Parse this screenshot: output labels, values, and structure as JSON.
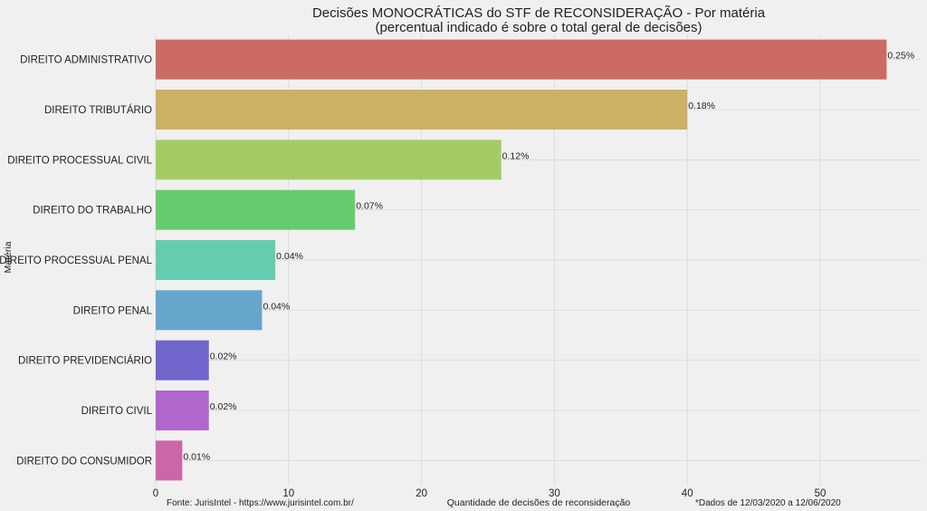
{
  "chart_data": {
    "type": "bar",
    "orientation": "horizontal",
    "title": "Decisões MONOCRÁTICAS do STF de RECONSIDERAÇÃO - Por matéria",
    "subtitle": "(percentual indicado é sobre o total geral de decisões)",
    "xlabel": "Quantidade de decisões de reconsideração",
    "ylabel": "Matéria",
    "xlim": [
      0,
      56
    ],
    "xticks": [
      0,
      10,
      20,
      30,
      40,
      50
    ],
    "grid": true,
    "categories": [
      "DIREITO ADMINISTRATIVO",
      "DIREITO TRIBUTÁRIO",
      "DIREITO PROCESSUAL CIVIL",
      "DIREITO DO TRABALHO",
      "DIREITO PROCESSUAL PENAL",
      "DIREITO PENAL",
      "DIREITO PREVIDENCIÁRIO",
      "DIREITO CIVIL",
      "DIREITO DO CONSUMIDOR"
    ],
    "values": [
      55,
      40,
      26,
      15,
      9,
      8,
      4,
      4,
      2
    ],
    "data_labels": [
      "0.25%",
      "0.18%",
      "0.12%",
      "0.07%",
      "0.04%",
      "0.04%",
      "0.02%",
      "0.02%",
      "0.01%"
    ],
    "colors": [
      "#cc6b64",
      "#cbb066",
      "#a4cc66",
      "#66cc6e",
      "#66ccb0",
      "#66a6cc",
      "#7066cc",
      "#b066cc",
      "#cc66a6"
    ]
  },
  "footer": {
    "source": "Fonte: JurisIntel - https://www.jurisintel.com.br/",
    "date_range": "*Dados de 12/03/2020 a 12/06/2020"
  }
}
